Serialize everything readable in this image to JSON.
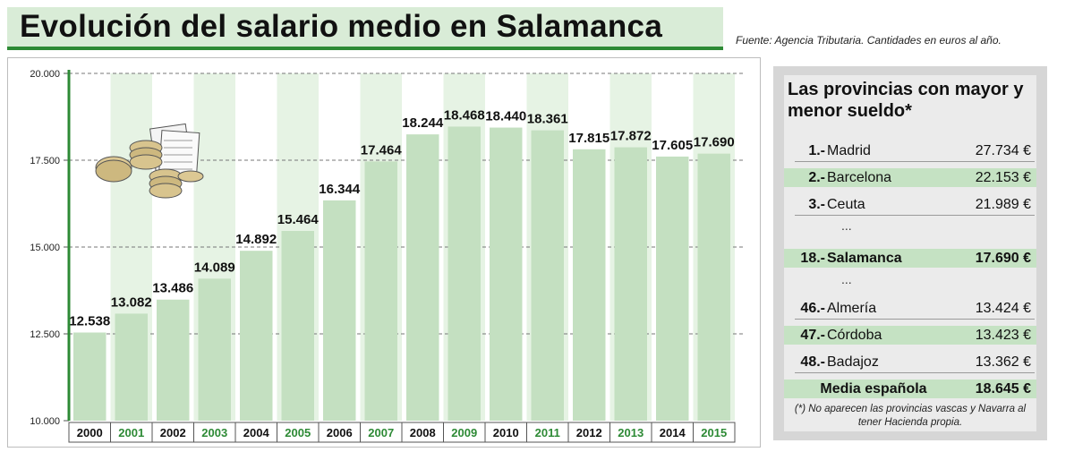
{
  "title": "Evolución del salario medio en Salamanca",
  "source": "Fuente: Agencia Tributaria. Cantidades en euros al año.",
  "colors": {
    "accent": "#2d8a35",
    "bar": "#c4e0c1",
    "band": "#e6f3e4",
    "title_bg": "#d9ecd7"
  },
  "chart_data": {
    "type": "bar",
    "categories": [
      "2000",
      "2001",
      "2002",
      "2003",
      "2004",
      "2005",
      "2006",
      "2007",
      "2008",
      "2009",
      "2010",
      "2011",
      "2012",
      "2013",
      "2014",
      "2015"
    ],
    "values": [
      12538,
      13082,
      13486,
      14089,
      14892,
      15464,
      16344,
      17464,
      18244,
      18468,
      18440,
      18361,
      17815,
      17872,
      17605,
      17690
    ],
    "value_labels": [
      "12.538",
      "13.082",
      "13.486",
      "14.089",
      "14.892",
      "15.464",
      "16.344",
      "17.464",
      "18.244",
      "18.468",
      "18.440",
      "18.361",
      "17.815",
      "17.872",
      "17.605",
      "17.690"
    ],
    "ylim": [
      10000,
      20000
    ],
    "yticks": [
      10000,
      12500,
      15000,
      17500,
      20000
    ],
    "ytick_labels": [
      "10.000",
      "12.500",
      "15.000",
      "17.500",
      "20.000"
    ],
    "grid": true,
    "highlighted_categories": [
      "2001",
      "2003",
      "2005",
      "2007",
      "2009",
      "2011",
      "2013",
      "2015"
    ]
  },
  "panel": {
    "title": "Las provincias con mayor y menor sueldo*",
    "rows": [
      {
        "rank": "1.-",
        "name": "Madrid",
        "value": "27.734 €"
      },
      {
        "rank": "2.-",
        "name": "Barcelona",
        "value": "22.153 €"
      },
      {
        "rank": "3.-",
        "name": "Ceuta",
        "value": "21.989 €"
      },
      {
        "rank": "18.-",
        "name": "Salamanca",
        "value": "17.690 €"
      },
      {
        "rank": "46.-",
        "name": "Almería",
        "value": "13.424 €"
      },
      {
        "rank": "47.-",
        "name": "Córdoba",
        "value": "13.423 €"
      },
      {
        "rank": "48.-",
        "name": "Badajoz",
        "value": "13.362 €"
      }
    ],
    "ellipsis": "...",
    "average": {
      "label": "Media española",
      "value": "18.645 €"
    },
    "footnote": "(*) No aparecen las provincias vascas y Navarra al tener Hacienda propia."
  }
}
